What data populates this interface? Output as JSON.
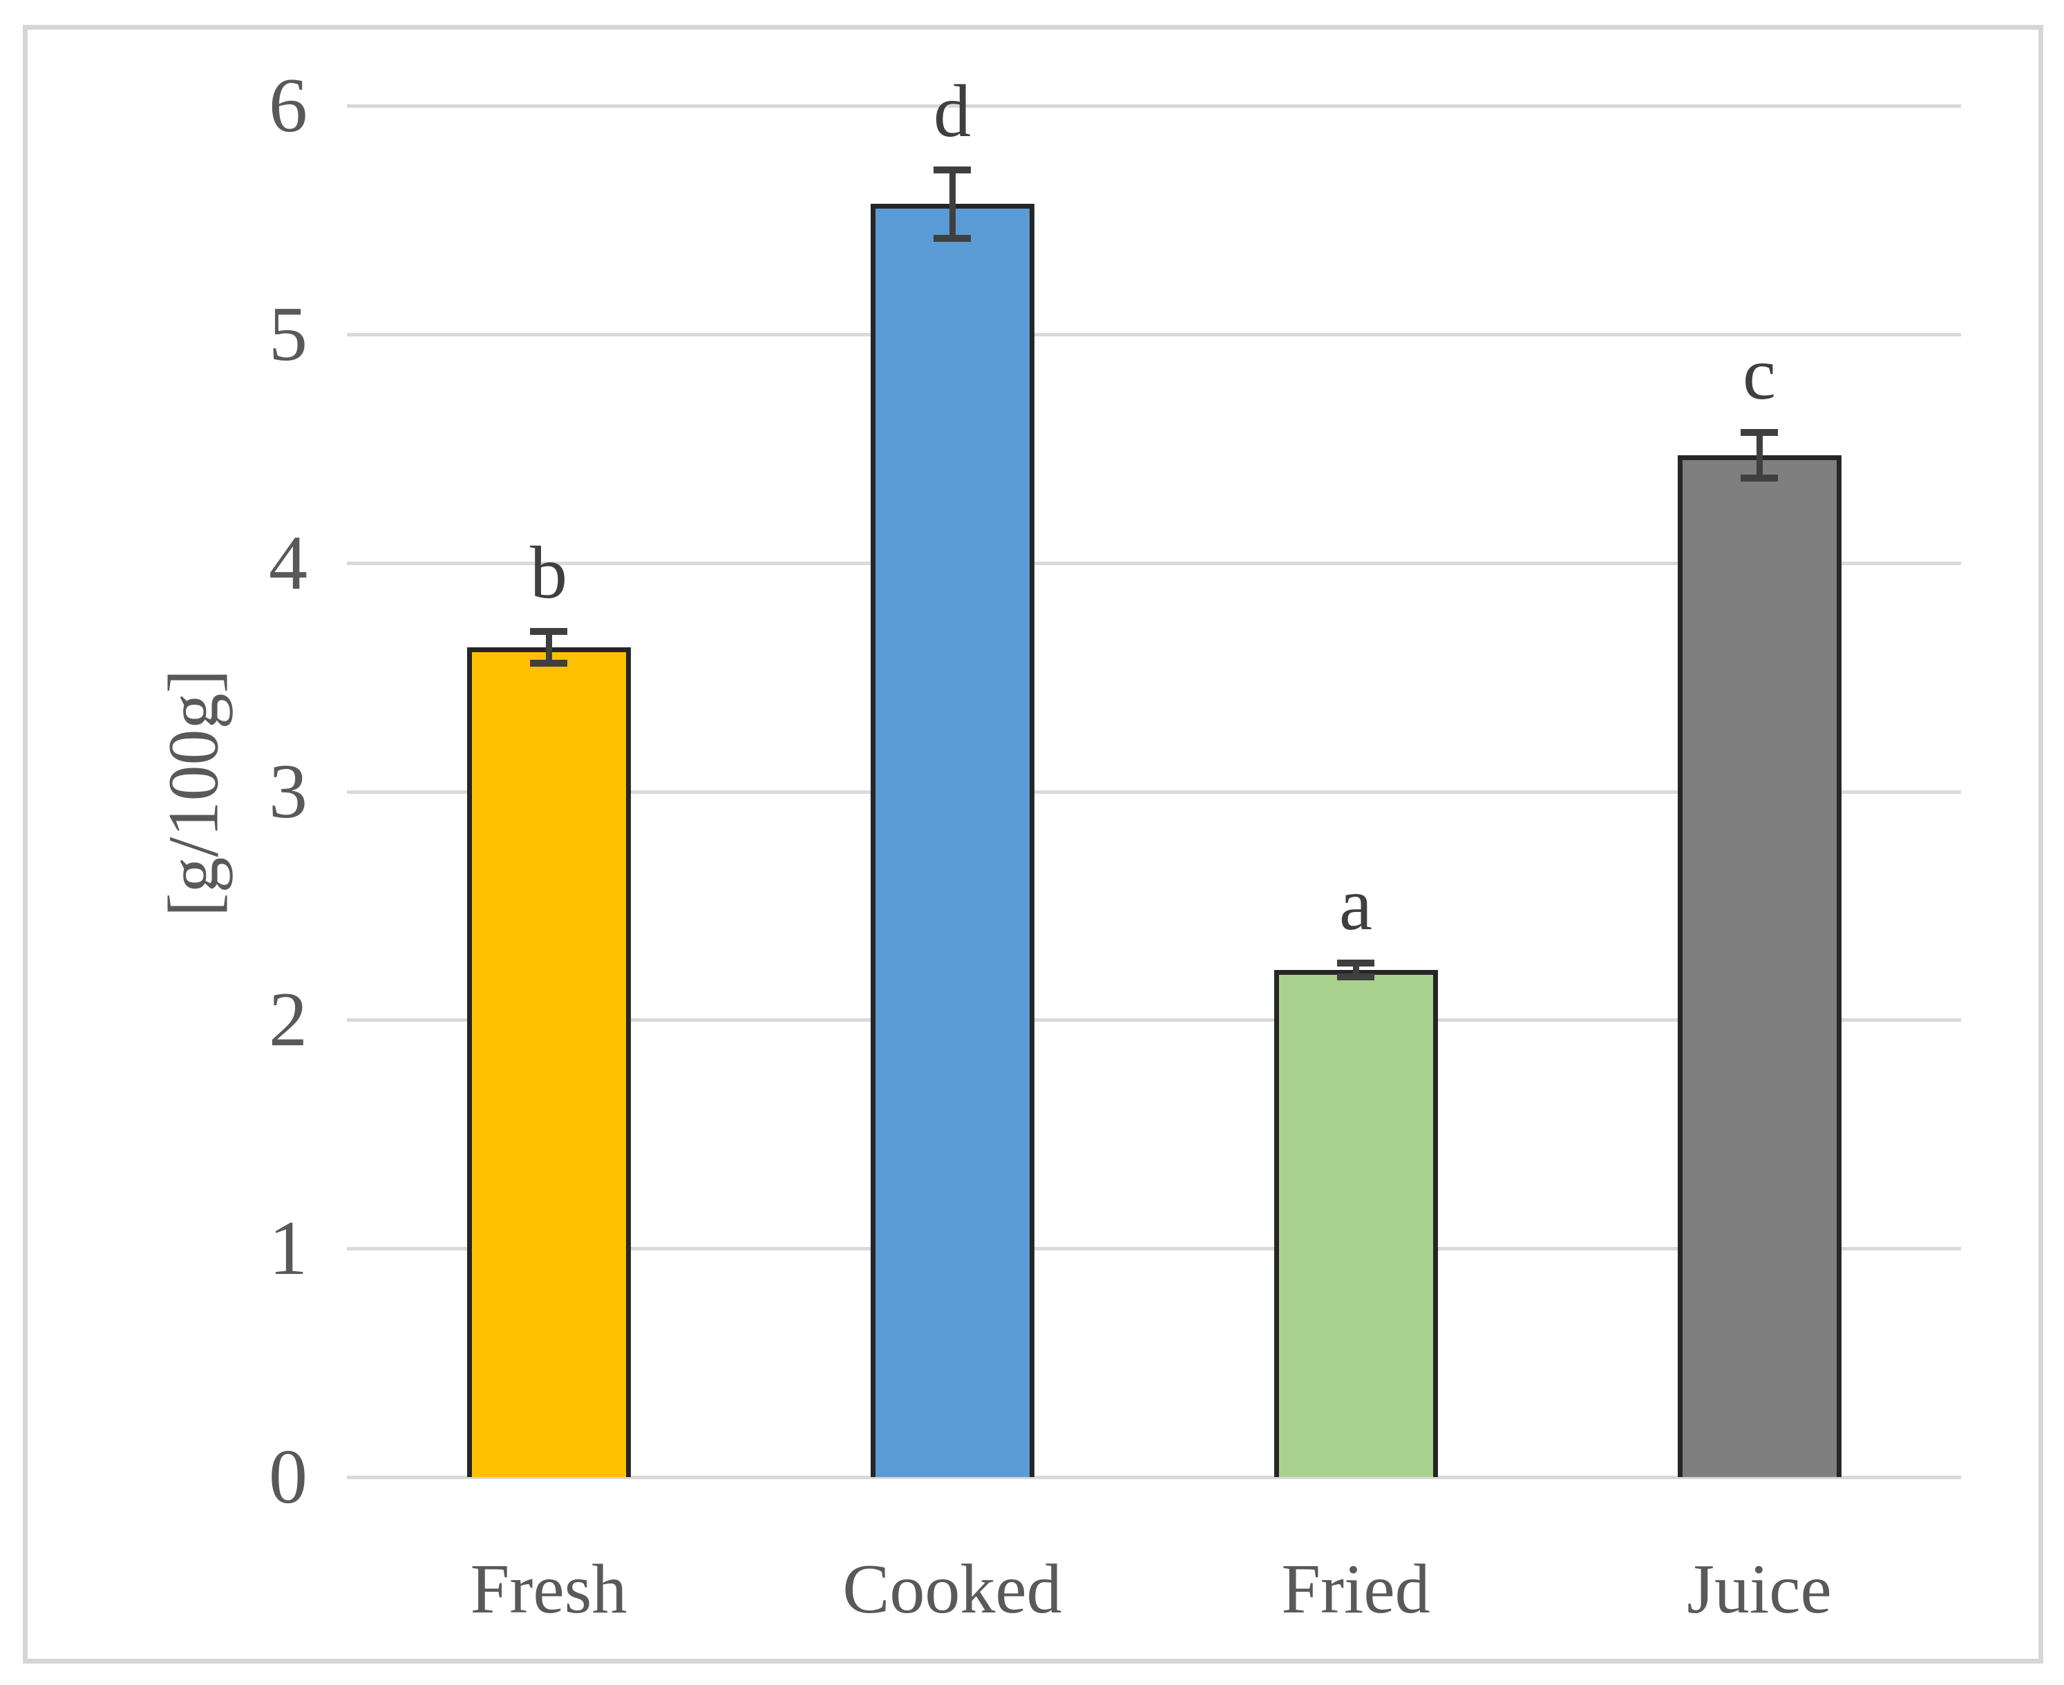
{
  "chart_data": {
    "type": "bar",
    "title": "",
    "xlabel": "",
    "ylabel": "[g/100g]",
    "categories": [
      "Fresh",
      "Cooked",
      "Fried",
      "Juice"
    ],
    "values": [
      3.63,
      5.57,
      2.22,
      4.47
    ],
    "errors": [
      0.07,
      0.15,
      0.03,
      0.1
    ],
    "significance_letters": [
      "b",
      "d",
      "a",
      "c"
    ],
    "bar_colors": [
      "#FFC000",
      "#5B9BD5",
      "#A9D18E",
      "#7F7F7F"
    ],
    "bar_outline_color": "#262626",
    "error_bar_color": "#3F3F3F",
    "ylim": [
      0,
      6
    ],
    "yticks": [
      0,
      1,
      2,
      3,
      4,
      5,
      6
    ],
    "grid": true,
    "gridline_color": "#D9D9D9",
    "axis_text_color": "#595959",
    "letter_color": "#3F3F3F",
    "frame_color": "#D6D6D6",
    "legend": "none",
    "background": "#FFFFFF"
  }
}
